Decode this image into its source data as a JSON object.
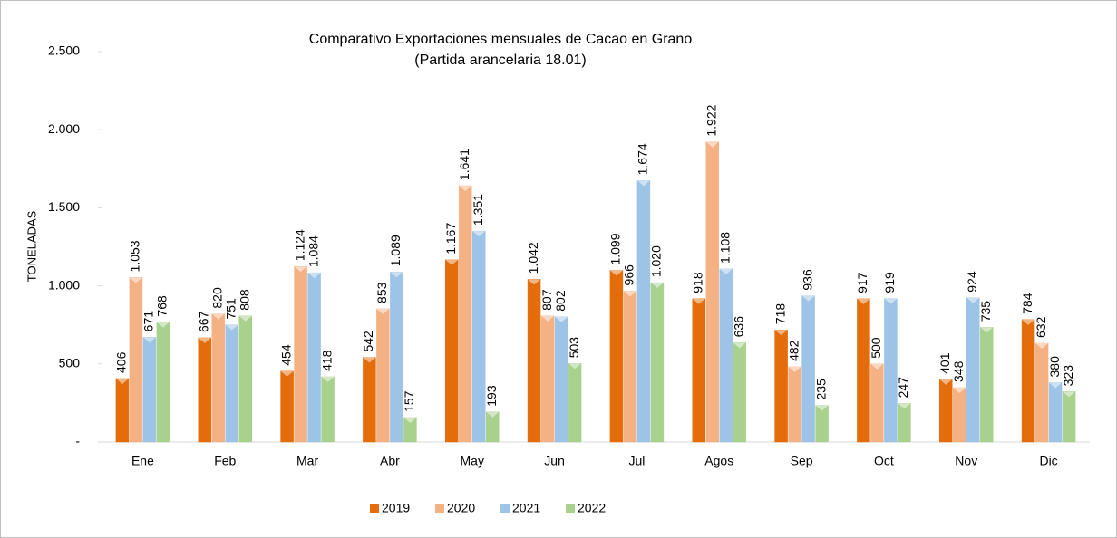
{
  "chart_data": {
    "type": "bar",
    "title": "Comparativo Exportaciones mensuales de Cacao en Grano",
    "subtitle": "(Partida arancelaria 18.01)",
    "y_label": "TONELADAS",
    "categories": [
      "Ene",
      "Feb",
      "Mar",
      "Abr",
      "May",
      "Jun",
      "Jul",
      "Agos",
      "Sep",
      "Oct",
      "Nov",
      "Dic"
    ],
    "series": [
      {
        "name": "2019",
        "color": "#e46c0a",
        "values": [
          406,
          667,
          454,
          542,
          1167,
          1042,
          1099,
          918,
          718,
          917,
          401,
          784
        ],
        "value_labels": [
          "406",
          "667",
          "454",
          "542",
          "1.167",
          "1.042",
          "1.099",
          "918",
          "718",
          "917",
          "401",
          "784"
        ]
      },
      {
        "name": "2020",
        "color": "#f4b183",
        "values": [
          1053,
          820,
          1124,
          853,
          1641,
          807,
          966,
          1922,
          482,
          500,
          348,
          632
        ],
        "value_labels": [
          "1.053",
          "820",
          "1.124",
          "853",
          "1.641",
          "807",
          "966",
          "1.922",
          "482",
          "500",
          "348",
          "632"
        ]
      },
      {
        "name": "2021",
        "color": "#9dc3e6",
        "values": [
          671,
          751,
          1084,
          1089,
          1351,
          802,
          1674,
          1108,
          936,
          919,
          924,
          380
        ],
        "value_labels": [
          "671",
          "751",
          "1.084",
          "1.089",
          "1.351",
          "802",
          "1.674",
          "1.108",
          "936",
          "919",
          "924",
          "380"
        ]
      },
      {
        "name": "2022",
        "color": "#a9d18e",
        "values": [
          768,
          808,
          418,
          157,
          193,
          503,
          1020,
          636,
          235,
          247,
          735,
          323
        ],
        "value_labels": [
          "768",
          "808",
          "418",
          "157",
          "193",
          "503",
          "1.020",
          "636",
          "235",
          "247",
          "735",
          "323"
        ]
      }
    ],
    "ylim": [
      0,
      2500
    ],
    "yticks": [
      {
        "value": 0,
        "label": "-"
      },
      500,
      {
        "value": 1000,
        "label": "1.000"
      },
      {
        "value": 1500,
        "label": "1.500"
      },
      {
        "value": 2000,
        "label": "2.000"
      },
      {
        "value": 2500,
        "label": "2.500"
      }
    ],
    "legend": "bottom"
  }
}
